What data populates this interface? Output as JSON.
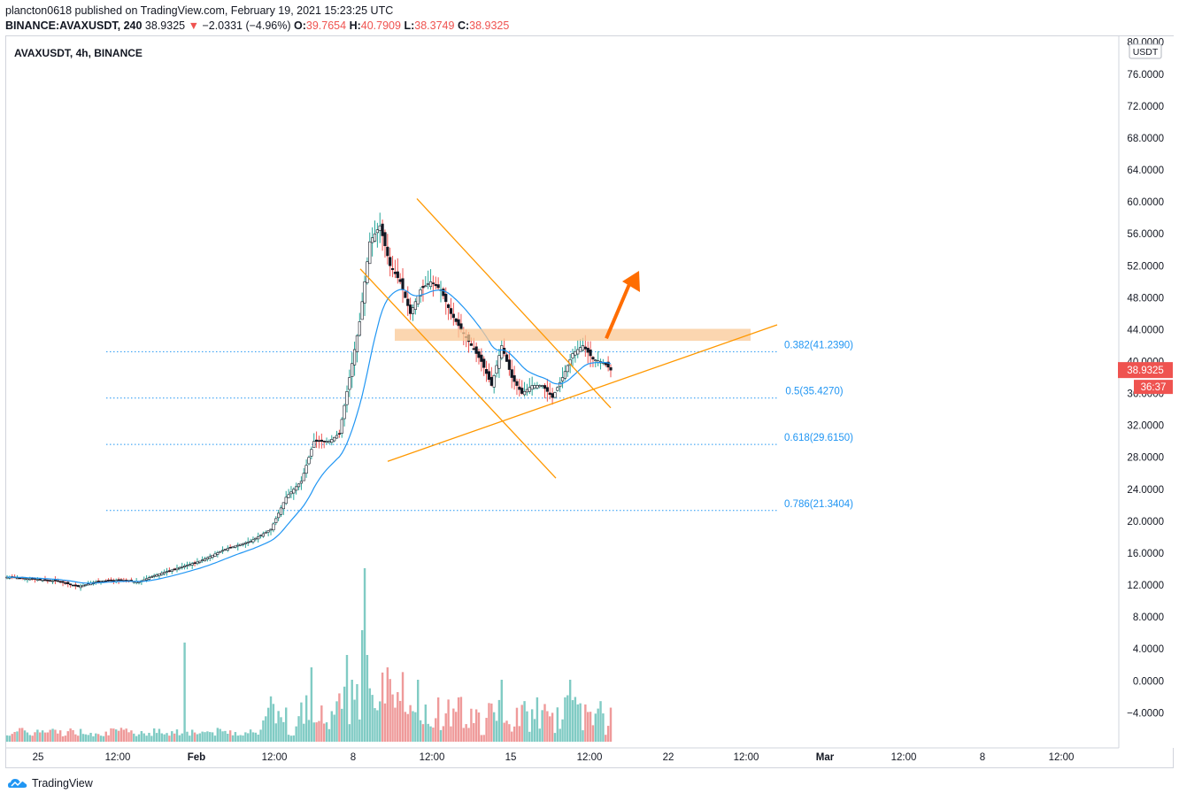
{
  "header": {
    "line1": "plancton0618 published on TradingView.com, February 19, 2021 15:23:25 UTC",
    "symbol_tf": "BINANCE:AVAXUSDT, 240",
    "last": "38.9325",
    "arrow": "▼",
    "change": "−2.0331 (−4.96%)",
    "o_label": "O:",
    "o_value": "39.7654",
    "h_label": "H:",
    "h_value": "40.7909",
    "l_label": "L:",
    "l_value": "38.3749",
    "c_label": "C:",
    "c_value": "38.9325"
  },
  "chart_title": "AVAXUSDT, 4h, BINANCE",
  "currency": "USDT",
  "price_tag": "38.9325",
  "countdown": "36:37",
  "footer_brand": "TradingView",
  "colors": {
    "up": "#26a69a",
    "down": "#ef5350",
    "candle_body": "#131722",
    "ma": "#2196f3",
    "trend": "#ff9800",
    "zone": "#f9c896",
    "arrow": "#ff6d00",
    "fib": "#2196f3",
    "vol_up": "#80cbc4",
    "vol_down": "#ef9a9a"
  },
  "chart_data": {
    "type": "candlestick",
    "y_ticks": [
      "80.0000",
      "76.0000",
      "72.0000",
      "68.0000",
      "64.0000",
      "60.0000",
      "56.0000",
      "52.0000",
      "48.0000",
      "44.0000",
      "40.0000",
      "36.0000",
      "32.0000",
      "28.0000",
      "24.0000",
      "20.0000",
      "16.0000",
      "12.0000",
      "8.0000",
      "4.0000",
      "0.0000",
      "−4.0000"
    ],
    "x_ticks": [
      "25",
      "12:00",
      "Feb",
      "12:00",
      "8",
      "12:00",
      "15",
      "12:00",
      "22",
      "12:00",
      "Mar",
      "12:00",
      "8",
      "12:00"
    ],
    "fib_levels": [
      {
        "label": "0.382(41.2390)",
        "value": 41.239
      },
      {
        "label": "0.5(35.4270)",
        "value": 35.427
      },
      {
        "label": "0.618(29.6150)",
        "value": 29.615
      },
      {
        "label": "0.786(21.3404)",
        "value": 21.3404
      }
    ],
    "last_price": 38.9325
  }
}
